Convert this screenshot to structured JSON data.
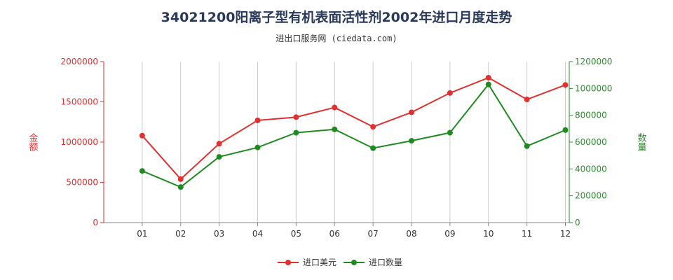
{
  "title": "34021200阳离子型有机表面活性剂2002年进口月度走势",
  "subtitle": "进出口服务网 (ciedata.com)",
  "chart_data": {
    "type": "line",
    "categories": [
      "01",
      "02",
      "03",
      "04",
      "05",
      "06",
      "07",
      "08",
      "09",
      "10",
      "11",
      "12"
    ],
    "y_left": {
      "label": "金额",
      "ticks": [
        "0",
        "500000",
        "1000000",
        "1500000",
        "2000000"
      ],
      "range": [
        0,
        2000000
      ],
      "color": "#e03030"
    },
    "y_right": {
      "label": "数量",
      "ticks": [
        "0",
        "200000",
        "400000",
        "600000",
        "800000",
        "1000000",
        "1200000"
      ],
      "range": [
        0,
        1200000
      ],
      "color": "#2e8b2e"
    },
    "series": [
      {
        "name": "进口美元",
        "axis": "left",
        "color": "#e03030",
        "values": [
          1080000,
          540000,
          980000,
          1270000,
          1310000,
          1430000,
          1190000,
          1370000,
          1610000,
          1800000,
          1530000,
          1710000
        ]
      },
      {
        "name": "进口数量",
        "axis": "right",
        "color": "#1f8a1f",
        "values": [
          385000,
          265000,
          490000,
          560000,
          670000,
          695000,
          555000,
          610000,
          670000,
          1030000,
          570000,
          690000
        ]
      }
    ],
    "grid": {
      "vertical": true,
      "horizontal": false
    },
    "legend_position": "bottom-center"
  }
}
